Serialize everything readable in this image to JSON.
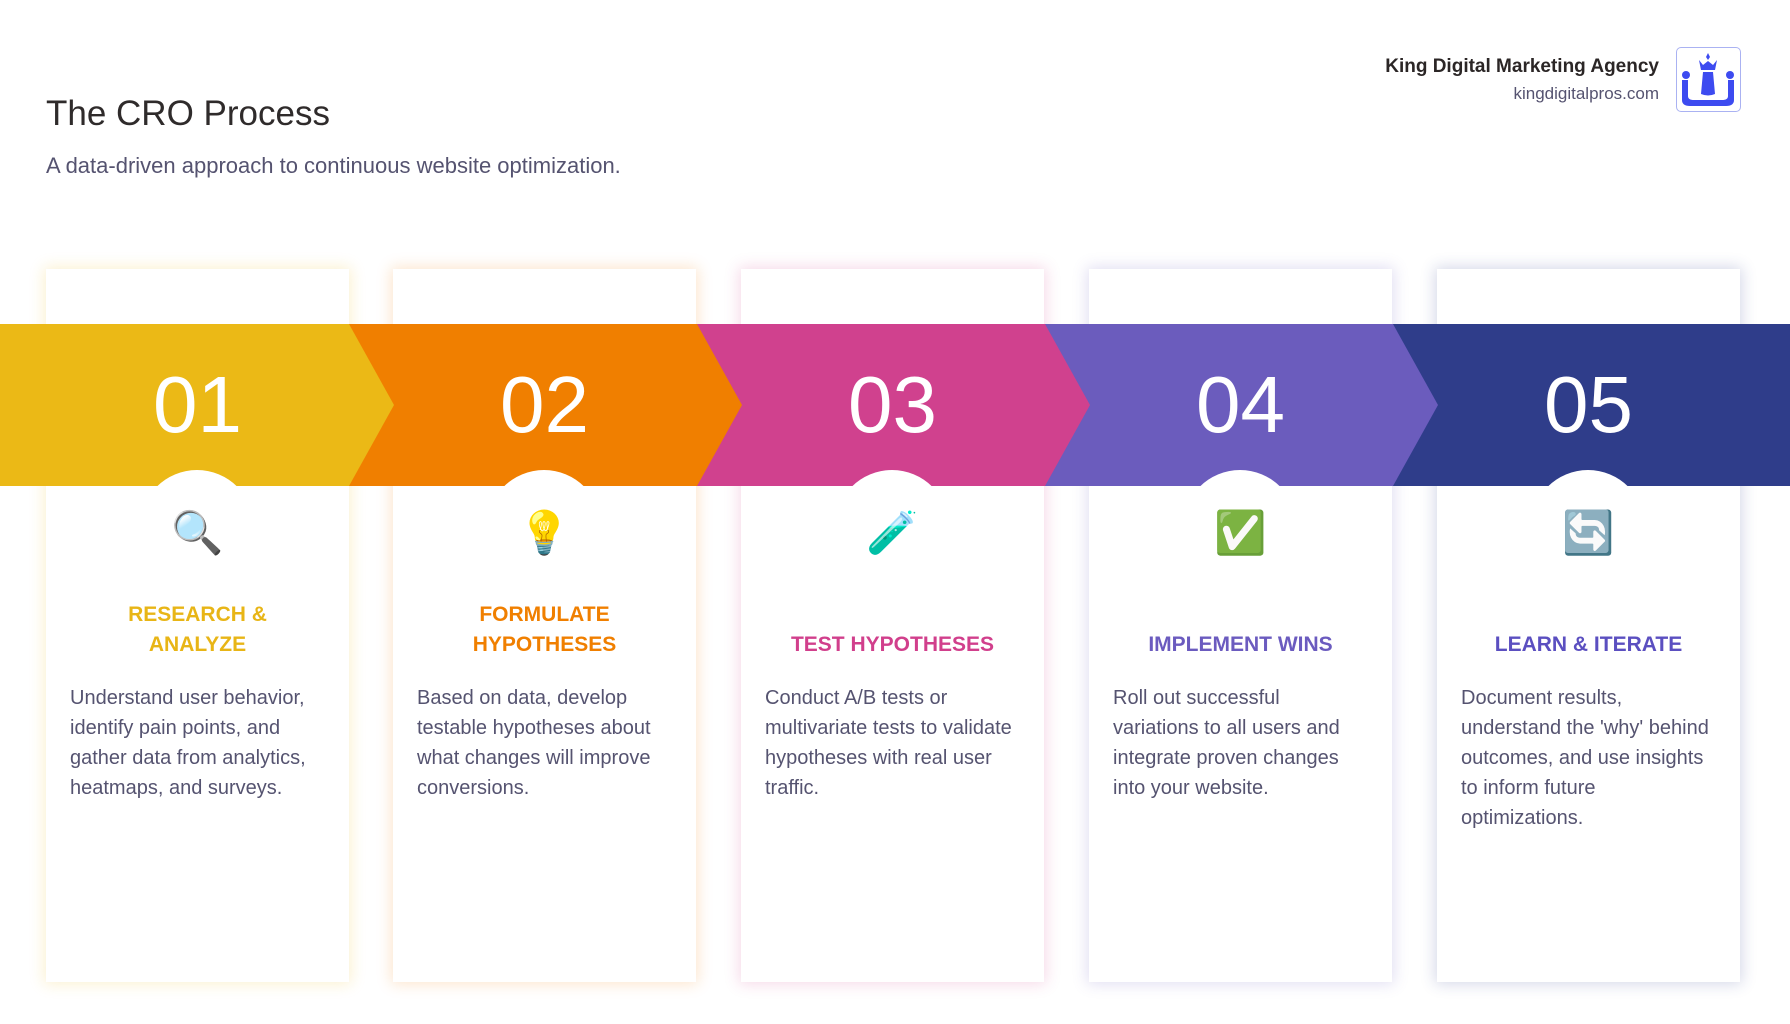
{
  "header": {
    "title": "The CRO Process",
    "subtitle": "A data-driven approach to continuous website optimization."
  },
  "brand": {
    "name": "King Digital Marketing Agency",
    "url": "kingdigitalpros.com",
    "logo_color": "#3d4bf0"
  },
  "steps": [
    {
      "number": "01",
      "icon": "magnifying-glass-icon",
      "emoji": "🔍",
      "title": "RESEARCH & ANALYZE",
      "description": "Understand user behavior, identify pain points, and gather data from analytics, heatmaps, and surveys.",
      "band_color": "#ebb916",
      "title_color": "#e8b516"
    },
    {
      "number": "02",
      "icon": "light-bulb-icon",
      "emoji": "💡",
      "title": "FORMULATE HYPOTHESES",
      "description": "Based on data, develop testable hypotheses about what changes will improve conversions.",
      "band_color": "#f07f00",
      "title_color": "#f07f00"
    },
    {
      "number": "03",
      "icon": "test-tube-icon",
      "emoji": "🧪",
      "title": "TEST HYPOTHESES",
      "description": "Conduct A/B tests or multivariate tests to validate hypotheses with real user traffic.",
      "band_color": "#d0418e",
      "title_color": "#d13f8c"
    },
    {
      "number": "04",
      "icon": "check-mark-icon",
      "emoji": "✅",
      "title": "IMPLEMENT WINS",
      "description": "Roll out successful variations to all users and integrate proven changes into your website.",
      "band_color": "#6b5cbd",
      "title_color": "#6b5bbf"
    },
    {
      "number": "05",
      "icon": "refresh-icon",
      "emoji": "🔄",
      "title": "LEARN & ITERATE",
      "description": "Document results, understand the 'why' behind outcomes, and use insights to inform future optimizations.",
      "band_color": "#2f3d8a",
      "title_color": "#5b4fc0"
    }
  ]
}
